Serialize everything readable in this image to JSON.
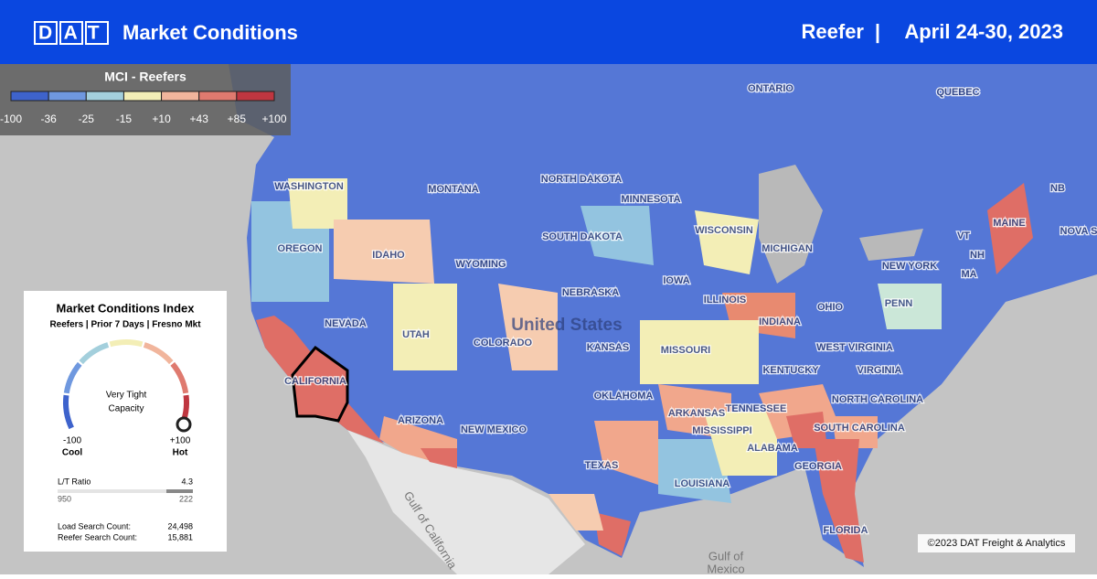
{
  "header": {
    "logo": "DAT",
    "title": "Market Conditions",
    "equipment": "Reefer",
    "separator": "|",
    "date": "April 24-30, 2023"
  },
  "legend": {
    "title": "MCI - Reefers",
    "labels": [
      "-100",
      "-36",
      "-25",
      "-15",
      "+10",
      "+43",
      "+85",
      "+100"
    ],
    "colors": [
      "#3e63cc",
      "#6f98df",
      "#a3cfdc",
      "#f3eeb6",
      "#f1b59c",
      "#df7a6f",
      "#bf3640"
    ]
  },
  "card": {
    "title": "Market Conditions Index",
    "subtitle": "Reefers | Prior 7 Days | Fresno Mkt",
    "status": [
      "Very Tight",
      "Capacity"
    ],
    "min": "-100",
    "min_label": "Cool",
    "max": "+100",
    "max_label": "Hot",
    "ratio_label": "L/T Ratio",
    "ratio": "4.3",
    "loads": "950",
    "trucks": "222",
    "load_search_label": "Load Search Count:",
    "load_search": "24,498",
    "reefer_search_label": "Reefer Search Count:",
    "reefer_search": "15,881"
  },
  "map": {
    "labels": [
      "ONTARIO",
      "QUEBEC",
      "NORTH DAKOTA",
      "MINNESOTA",
      "WASHINGTON",
      "MONTANA",
      "SOUTH DAKOTA",
      "WISCONSIN",
      "MICHIGAN",
      "OREGON",
      "IDAHO",
      "WYOMING",
      "IOWA",
      "NEW YORK",
      "MAINE",
      "NB",
      "NOVA S",
      "VT",
      "NH",
      "MA",
      "PENN",
      "OHIO",
      "INDIANA",
      "ILLINOIS",
      "NEBRASKA",
      "NEVADA",
      "UTAH",
      "COLORADO",
      "KANSAS",
      "MISSOURI",
      "KENTUCKY",
      "WEST VIRGINIA",
      "VIRGINIA",
      "CALIFORNIA",
      "NORTH CAROLINA",
      "ARIZONA",
      "NEW MEXICO",
      "OKLAHOMA",
      "ARKANSAS",
      "TENNESSEE",
      "SOUTH CAROLINA",
      "GEORGIA",
      "ALABAMA",
      "MISSISSIPPI",
      "LOUISIANA",
      "TEXAS",
      "FLORIDA"
    ],
    "country": "United States",
    "gulf_california": "Gulf of California",
    "gulf_mexico": [
      "Gulf of",
      "Mexico"
    ]
  },
  "footer": {
    "copyright": "©2023 DAT Freight & Analytics"
  }
}
